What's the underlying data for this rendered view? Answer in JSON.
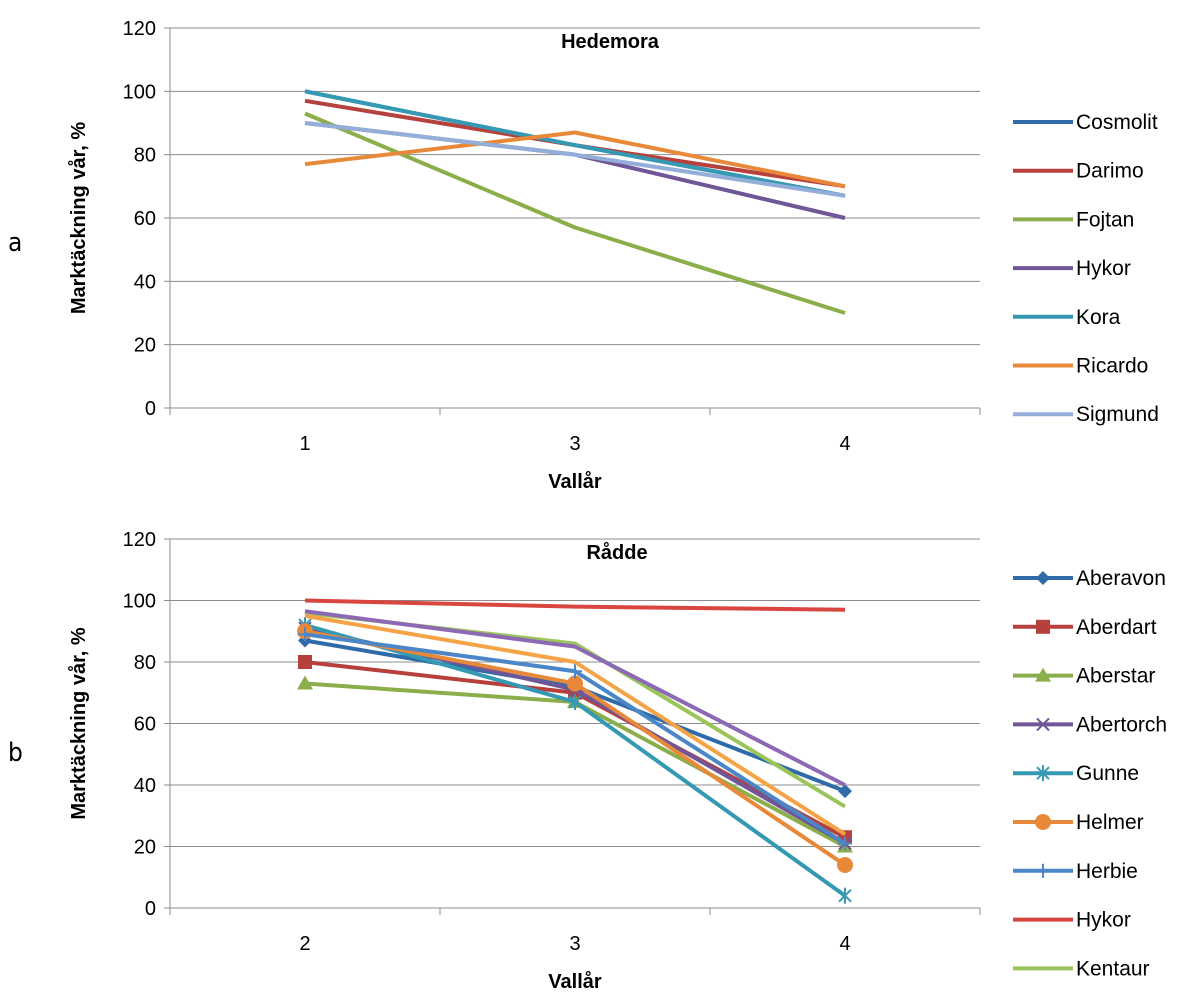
{
  "chart_data": [
    {
      "panel_label": "a",
      "type": "line",
      "title": "Hedemora",
      "xlabel": "Vallår",
      "ylabel": "Marktäckning vår, %",
      "categories": [
        "1",
        "3",
        "4"
      ],
      "ylim": [
        0,
        120
      ],
      "yticks": [
        0,
        20,
        40,
        60,
        80,
        100,
        120
      ],
      "grid": true,
      "legend": "right",
      "markers": false,
      "series": [
        {
          "name": "Cosmolit",
          "color": "#2E6BA8",
          "values": [
            100,
            83,
            67
          ]
        },
        {
          "name": "Darimo",
          "color": "#B5403C",
          "values": [
            97,
            83,
            70
          ]
        },
        {
          "name": "Fojtan",
          "color": "#8AAE4A",
          "values": [
            93,
            57,
            30
          ]
        },
        {
          "name": "Hykor",
          "color": "#6F5696",
          "values": [
            90,
            80,
            60
          ]
        },
        {
          "name": "Kora",
          "color": "#3599B3",
          "values": [
            100,
            83,
            67
          ]
        },
        {
          "name": "Ricardo",
          "color": "#E8893A",
          "values": [
            77,
            87,
            70
          ]
        },
        {
          "name": "Sigmund",
          "color": "#94AEDA",
          "values": [
            90,
            80,
            67
          ]
        }
      ]
    },
    {
      "panel_label": "b",
      "type": "line",
      "title": "Rådde",
      "xlabel": "Vallår",
      "ylabel": "Marktäckning vår, %",
      "categories": [
        "2",
        "3",
        "4"
      ],
      "ylim": [
        0,
        120
      ],
      "yticks": [
        0,
        20,
        40,
        60,
        80,
        100,
        120
      ],
      "grid": true,
      "legend": "right",
      "markers": true,
      "series": [
        {
          "name": "Aberavon",
          "color": "#2E6BA8",
          "marker": "diamond",
          "values": [
            87,
            72,
            38
          ]
        },
        {
          "name": "Aberdart",
          "color": "#B5403C",
          "marker": "square",
          "values": [
            80,
            70,
            23
          ]
        },
        {
          "name": "Aberstar",
          "color": "#8AAE4A",
          "marker": "triangle",
          "values": [
            73,
            67,
            20
          ]
        },
        {
          "name": "Abertorch",
          "color": "#6F5696",
          "marker": "x",
          "values": [
            91,
            71,
            21
          ]
        },
        {
          "name": "Gunne",
          "color": "#3599B3",
          "marker": "star",
          "values": [
            92,
            67,
            4
          ]
        },
        {
          "name": "Helmer",
          "color": "#E8893A",
          "marker": "circle",
          "values": [
            90,
            73,
            14
          ]
        },
        {
          "name": "Herbie",
          "color": "#4A86C8",
          "marker": "plus",
          "values": [
            89,
            77,
            21
          ]
        },
        {
          "name": "Hykor",
          "color": "#D9453F",
          "marker": "none",
          "values": [
            100,
            98,
            97
          ]
        },
        {
          "name": "Kentaur",
          "color": "#9BC55B",
          "marker": "none",
          "values": [
            96,
            86,
            33
          ]
        },
        {
          "name": "",
          "color": "#8D68B5",
          "marker": "none",
          "values": [
            96.5,
            85,
            40
          ]
        },
        {
          "name": "",
          "color": "#F5A347",
          "marker": "none",
          "values": [
            95,
            80,
            24
          ]
        }
      ]
    }
  ]
}
